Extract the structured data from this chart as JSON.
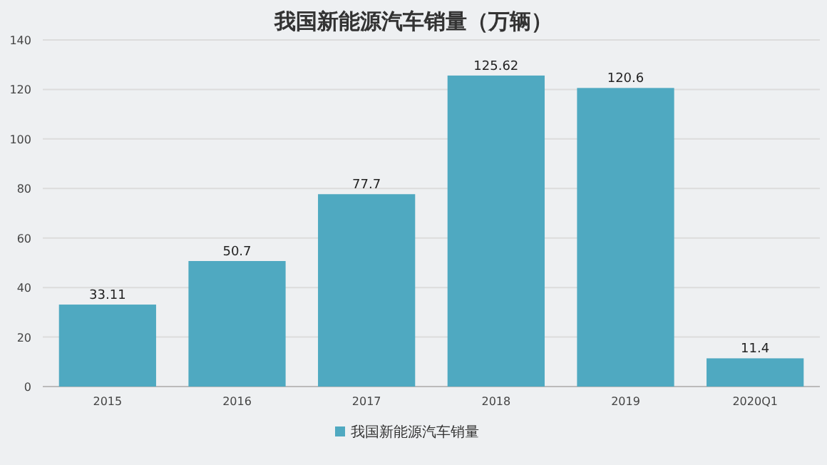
{
  "chart_data": {
    "type": "bar",
    "title": "我国新能源汽车销量（万辆）",
    "categories": [
      "2015",
      "2016",
      "2017",
      "2018",
      "2019",
      "2020Q1"
    ],
    "series": [
      {
        "name": "我国新能源汽车销量",
        "color": "#4fa9c1",
        "values": [
          33.11,
          50.7,
          77.7,
          125.62,
          120.6,
          11.4
        ]
      }
    ],
    "ylim": [
      0,
      140
    ],
    "yticks": [
      0,
      20,
      40,
      60,
      80,
      100,
      120,
      140
    ],
    "grid": "y",
    "legend": "bottom",
    "data_labels": true
  }
}
